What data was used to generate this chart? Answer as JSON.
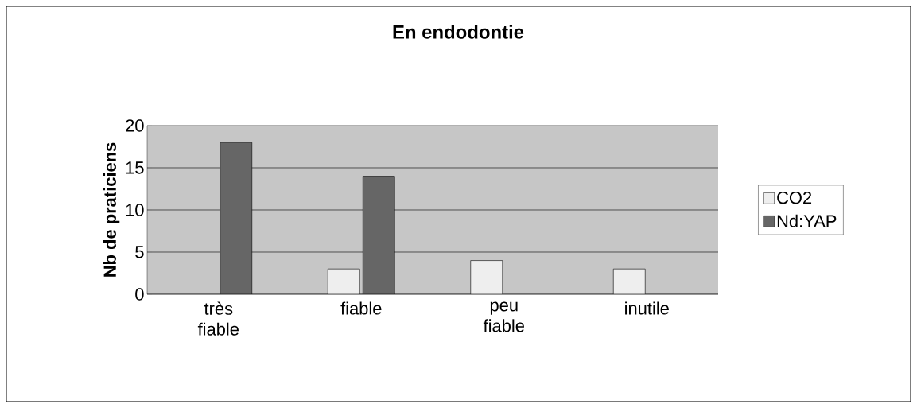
{
  "chart_data": {
    "type": "bar",
    "title": "En endodontie",
    "ylabel": "Nb de praticiens",
    "categories": [
      "très fiable",
      "fiable",
      "peu fiable",
      "inutile"
    ],
    "series": [
      {
        "name": "CO2",
        "color": "#eeeeee",
        "values": [
          null,
          3,
          4,
          3
        ]
      },
      {
        "name": "Nd:YAP",
        "color": "#666666",
        "values": [
          18,
          14,
          null,
          null
        ]
      }
    ],
    "ylim": [
      0,
      20
    ],
    "yticks": [
      0,
      5,
      10,
      15,
      20
    ],
    "grid": "y",
    "legend": "right"
  }
}
